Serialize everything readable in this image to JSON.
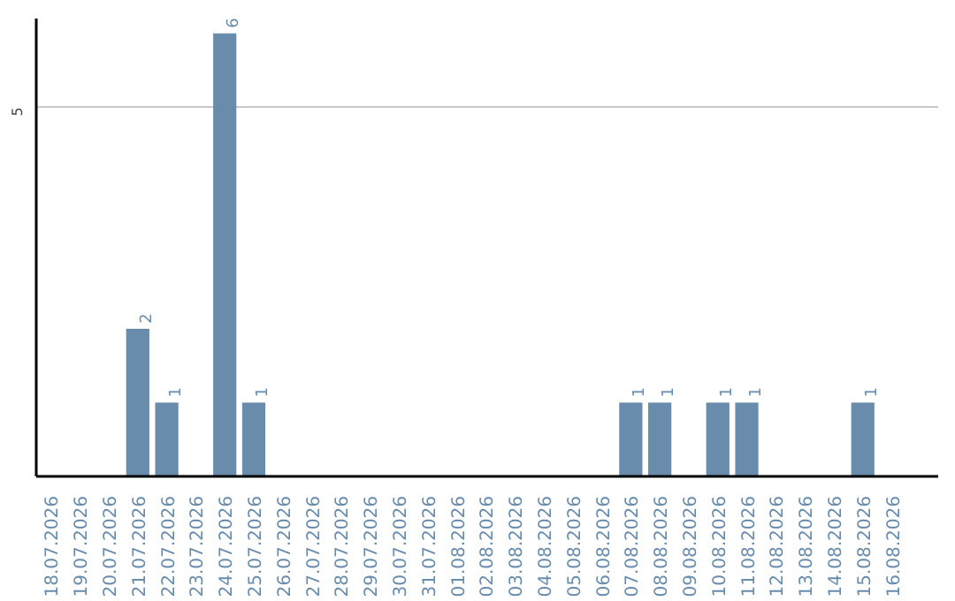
{
  "chart_data": {
    "type": "bar",
    "categories": [
      "18.07.2026",
      "19.07.2026",
      "20.07.2026",
      "21.07.2026",
      "22.07.2026",
      "23.07.2026",
      "24.07.2026",
      "25.07.2026",
      "26.07.2026",
      "27.07.2026",
      "28.07.2026",
      "29.07.2026",
      "30.07.2026",
      "31.07.2026",
      "01.08.2026",
      "02.08.2026",
      "03.08.2026",
      "04.08.2026",
      "05.08.2026",
      "06.08.2026",
      "07.08.2026",
      "08.08.2026",
      "09.08.2026",
      "10.08.2026",
      "11.08.2026",
      "12.08.2026",
      "13.08.2026",
      "14.08.2026",
      "15.08.2026",
      "16.08.2026"
    ],
    "values": [
      0,
      0,
      0,
      2,
      1,
      0,
      6,
      1,
      0,
      0,
      0,
      0,
      0,
      0,
      0,
      0,
      0,
      0,
      0,
      0,
      1,
      1,
      0,
      1,
      1,
      0,
      0,
      0,
      1,
      0
    ],
    "value_labels": [
      null,
      null,
      null,
      "2",
      "1",
      null,
      "6",
      "1",
      null,
      null,
      null,
      null,
      null,
      null,
      null,
      null,
      null,
      null,
      null,
      null,
      "1",
      "1",
      null,
      "1",
      "1",
      null,
      null,
      null,
      "1",
      null
    ],
    "color": "#6a8cac",
    "ylim": [
      0,
      6.2
    ],
    "yticks": [
      5
    ],
    "grid": "y"
  }
}
